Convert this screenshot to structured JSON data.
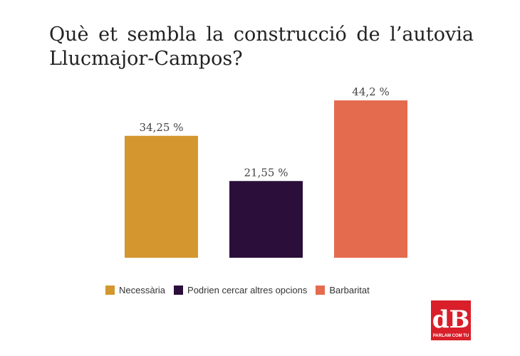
{
  "title": "Què et sembla la construcció de l’autovia Llucmajor-Campos?",
  "chart_data": {
    "type": "bar",
    "categories": [
      "Necessària",
      "Podrien cercar altres opcions",
      "Barbaritat"
    ],
    "values": [
      34.25,
      21.55,
      44.2
    ],
    "data_labels": [
      "34,25 %",
      "21,55 %",
      "44,2 %"
    ],
    "colors": [
      "#D4962F",
      "#2B0E3A",
      "#E56B4E"
    ],
    "ylim": [
      0,
      50
    ],
    "grid": false,
    "legend_position": "bottom"
  },
  "logo": {
    "text": "dB",
    "tagline": "PARLAM COM TU",
    "color": "#D81F2A"
  }
}
